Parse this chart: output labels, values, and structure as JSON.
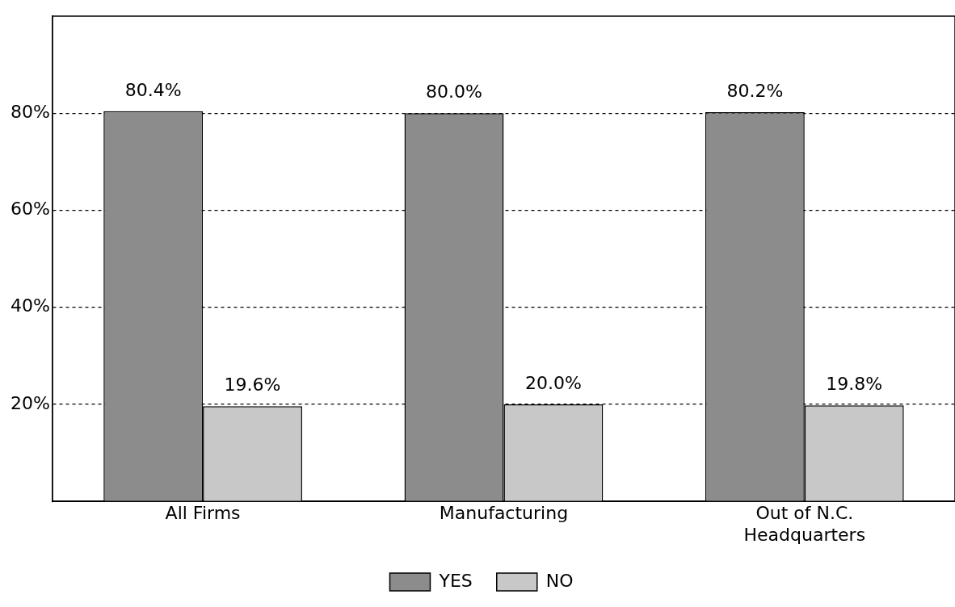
{
  "chart_data": {
    "type": "bar",
    "categories": [
      "All Firms",
      "Manufacturing",
      "Out of N.C.\nHeadquarters"
    ],
    "series": [
      {
        "name": "YES",
        "color": "#8c8c8c",
        "values": [
          80.4,
          80.0,
          80.2
        ],
        "value_labels": [
          "80.4%",
          "80.0%",
          "80.2%"
        ]
      },
      {
        "name": "NO",
        "color": "#c8c8c8",
        "values": [
          19.6,
          20.0,
          19.8
        ],
        "value_labels": [
          "19.6%",
          "20.0%",
          "19.8%"
        ]
      }
    ],
    "ylim": [
      0,
      100
    ],
    "yticks": [
      {
        "value": 20,
        "label": "20%"
      },
      {
        "value": 40,
        "label": "40%"
      },
      {
        "value": 60,
        "label": "60%"
      },
      {
        "value": 80,
        "label": "80%"
      }
    ],
    "grid": "y",
    "line_style": "dashed",
    "legend": "bottom"
  }
}
